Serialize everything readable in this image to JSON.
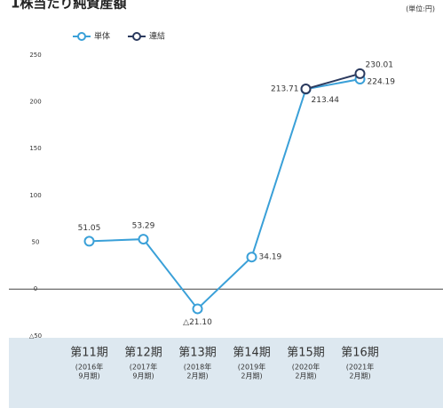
{
  "chart_data": {
    "type": "line",
    "title": "1株当たり純資産額",
    "unit": "(単位:円)",
    "categories": [
      "第11期",
      "第12期",
      "第13期",
      "第14期",
      "第15期",
      "第16期"
    ],
    "category_sublabels": [
      [
        "(2016年",
        "9月期)"
      ],
      [
        "(2017年",
        "9月期)"
      ],
      [
        "(2018年",
        "2月期)"
      ],
      [
        "(2019年",
        "2月期)"
      ],
      [
        "(2020年",
        "2月期)"
      ],
      [
        "(2021年",
        "2月期)"
      ]
    ],
    "series": [
      {
        "name": "単体",
        "color": "#3aa0d8",
        "values": [
          51.05,
          53.29,
          -21.1,
          34.19,
          213.44,
          224.19
        ],
        "value_labels": [
          "51.05",
          "53.29",
          "△21.10",
          "34.19",
          "213.44",
          "224.19"
        ]
      },
      {
        "name": "連結",
        "color": "#2b3a5e",
        "values": [
          null,
          null,
          null,
          null,
          213.71,
          230.01
        ],
        "value_labels": [
          null,
          null,
          null,
          null,
          "213.71",
          "230.01"
        ]
      }
    ],
    "ylim": [
      -52,
      265
    ],
    "yticks": [
      {
        "value": -50,
        "label": "△50"
      },
      0,
      50,
      100,
      150,
      200,
      250
    ],
    "grid": false
  }
}
